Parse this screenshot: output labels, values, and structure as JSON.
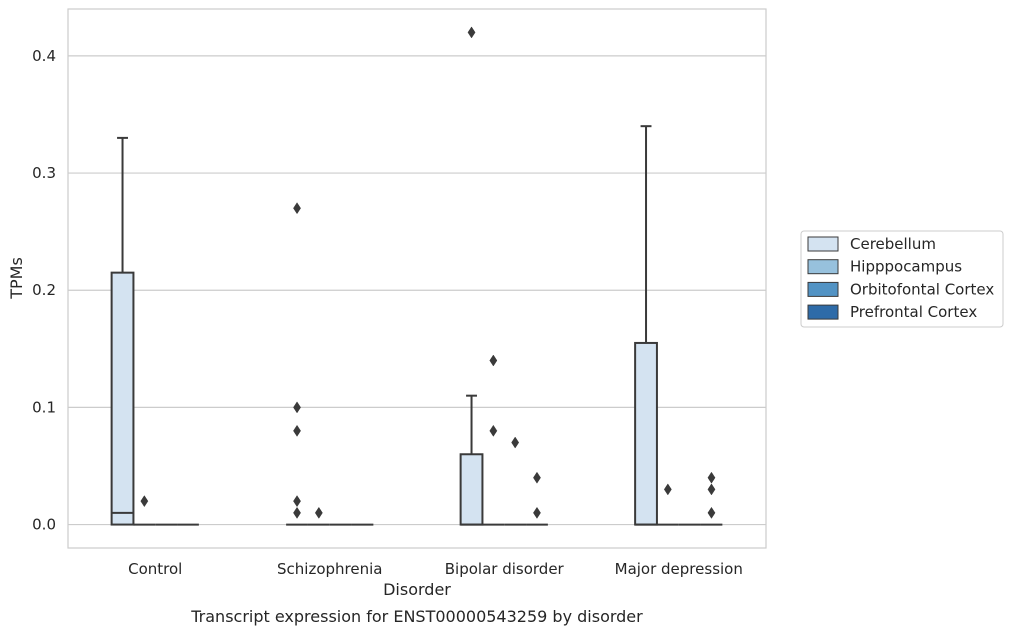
{
  "chart_data": {
    "type": "box",
    "xlabel": "Disorder",
    "ylabel": "TPMs",
    "caption": "Transcript expression for ENST00000543259 by disorder",
    "ylim": [
      -0.02,
      0.44
    ],
    "yticks": [
      0.0,
      0.1,
      0.2,
      0.3,
      0.4
    ],
    "ytick_labels": [
      "0.0",
      "0.1",
      "0.2",
      "0.3",
      "0.4"
    ],
    "grid": "y",
    "categories": [
      "Control",
      "Schizophrenia",
      "Bipolar disorder",
      "Major depression"
    ],
    "legend": {
      "position": "right",
      "entries": [
        {
          "label": "Cerebellum",
          "color": "#d4e3f1"
        },
        {
          "label": "Hipppocampus",
          "color": "#97c1dd"
        },
        {
          "label": "Orbitofontal Cortex",
          "color": "#5293c4"
        },
        {
          "label": "Prefrontal Cortex",
          "color": "#2e6ba8"
        }
      ]
    },
    "series": [
      {
        "name": "Cerebellum",
        "color": "#d4e3f1",
        "boxes": [
          {
            "q1": 0.0,
            "median": 0.01,
            "q3": 0.215,
            "whisker_low": 0.0,
            "whisker_high": 0.33,
            "outliers": []
          },
          {
            "q1": 0.0,
            "median": 0.0,
            "q3": 0.0,
            "whisker_low": 0.0,
            "whisker_high": 0.0,
            "outliers": [
              0.27,
              0.1,
              0.08,
              0.02,
              0.01
            ]
          },
          {
            "q1": 0.0,
            "median": 0.0,
            "q3": 0.06,
            "whisker_low": 0.0,
            "whisker_high": 0.11,
            "outliers": [
              0.42
            ]
          },
          {
            "q1": 0.0,
            "median": 0.0,
            "q3": 0.155,
            "whisker_low": 0.0,
            "whisker_high": 0.34,
            "outliers": []
          }
        ]
      },
      {
        "name": "Hipppocampus",
        "color": "#97c1dd",
        "boxes": [
          {
            "q1": 0.0,
            "median": 0.0,
            "q3": 0.0,
            "whisker_low": 0.0,
            "whisker_high": 0.0,
            "outliers": [
              0.02
            ]
          },
          {
            "q1": 0.0,
            "median": 0.0,
            "q3": 0.0,
            "whisker_low": 0.0,
            "whisker_high": 0.0,
            "outliers": [
              0.01
            ]
          },
          {
            "q1": 0.0,
            "median": 0.0,
            "q3": 0.0,
            "whisker_low": 0.0,
            "whisker_high": 0.0,
            "outliers": [
              0.14,
              0.08
            ]
          },
          {
            "q1": 0.0,
            "median": 0.0,
            "q3": 0.0,
            "whisker_low": 0.0,
            "whisker_high": 0.0,
            "outliers": [
              0.03
            ]
          }
        ]
      },
      {
        "name": "Orbitofontal Cortex",
        "color": "#5293c4",
        "boxes": [
          {
            "q1": 0.0,
            "median": 0.0,
            "q3": 0.0,
            "whisker_low": 0.0,
            "whisker_high": 0.0,
            "outliers": []
          },
          {
            "q1": 0.0,
            "median": 0.0,
            "q3": 0.0,
            "whisker_low": 0.0,
            "whisker_high": 0.0,
            "outliers": []
          },
          {
            "q1": 0.0,
            "median": 0.0,
            "q3": 0.0,
            "whisker_low": 0.0,
            "whisker_high": 0.0,
            "outliers": [
              0.07
            ]
          },
          {
            "q1": 0.0,
            "median": 0.0,
            "q3": 0.0,
            "whisker_low": 0.0,
            "whisker_high": 0.0,
            "outliers": []
          }
        ]
      },
      {
        "name": "Prefrontal Cortex",
        "color": "#2e6ba8",
        "boxes": [
          {
            "q1": 0.0,
            "median": 0.0,
            "q3": 0.0,
            "whisker_low": 0.0,
            "whisker_high": 0.0,
            "outliers": []
          },
          {
            "q1": 0.0,
            "median": 0.0,
            "q3": 0.0,
            "whisker_low": 0.0,
            "whisker_high": 0.0,
            "outliers": []
          },
          {
            "q1": 0.0,
            "median": 0.0,
            "q3": 0.0,
            "whisker_low": 0.0,
            "whisker_high": 0.0,
            "outliers": [
              0.04,
              0.01
            ]
          },
          {
            "q1": 0.0,
            "median": 0.0,
            "q3": 0.0,
            "whisker_low": 0.0,
            "whisker_high": 0.0,
            "outliers": [
              0.04,
              0.03,
              0.01
            ]
          }
        ]
      }
    ]
  }
}
